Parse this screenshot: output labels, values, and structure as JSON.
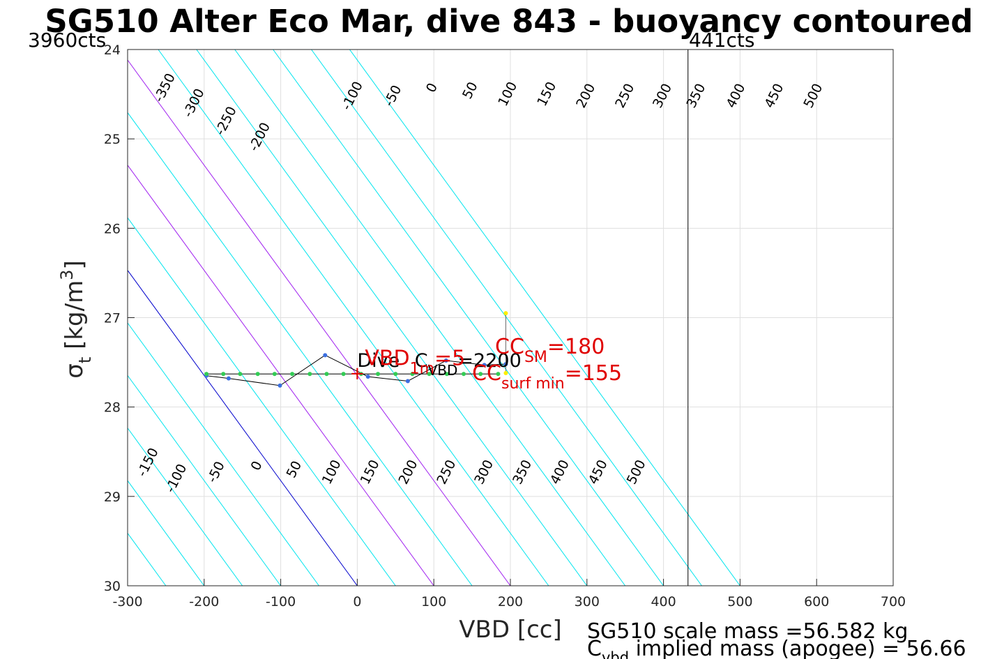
{
  "chart_data": {
    "type": "line",
    "title": "SG510 Alter Eco Mar, dive 843 - buoyancy contoured",
    "xlabel": "VBD [cc]",
    "ylabel": {
      "main": "σ",
      "sub": "t",
      "unit": " [kg/m",
      "sup": "3",
      "close": "]"
    },
    "xlim": [
      -300,
      700
    ],
    "ylim": [
      24,
      30
    ],
    "xticks": [
      -300,
      -200,
      -100,
      0,
      100,
      200,
      300,
      400,
      500,
      600,
      700
    ],
    "yticks": [
      24,
      25,
      26,
      27,
      28,
      29,
      30
    ],
    "grid": true,
    "corner_labels": {
      "left": "3960cts",
      "right": "441cts"
    },
    "vbd_max_line_x": 432,
    "contour_slope_cc_per_sigma": 85,
    "contour_color": "#00e5ee",
    "highlight_contours": [
      {
        "value": 0,
        "color": "#0000cc"
      },
      {
        "value": 100,
        "color": "#a020f0"
      },
      {
        "value": 200,
        "color": "#a020f0"
      }
    ],
    "contours": [
      -500,
      -450,
      -400,
      -350,
      -300,
      -250,
      -200,
      -150,
      -100,
      -50,
      0,
      50,
      100,
      150,
      200,
      250,
      300,
      350,
      400,
      450,
      500
    ],
    "top_contour_labels": [
      {
        "text": "-350",
        "x": -251,
        "y": 24.43
      },
      {
        "text": "-300",
        "x": -213,
        "y": 24.6
      },
      {
        "text": "-250",
        "x": -171,
        "y": 24.8
      },
      {
        "text": "-200",
        "x": -127,
        "y": 24.98
      },
      {
        "text": "-100",
        "x": -6,
        "y": 24.52
      },
      {
        "text": "-50",
        "x": 47,
        "y": 24.52
      },
      {
        "text": "0",
        "x": 98,
        "y": 24.43
      },
      {
        "text": "50",
        "x": 148,
        "y": 24.46
      },
      {
        "text": "100",
        "x": 197,
        "y": 24.5
      },
      {
        "text": "150",
        "x": 248,
        "y": 24.5
      },
      {
        "text": "200",
        "x": 299,
        "y": 24.52
      },
      {
        "text": "250",
        "x": 350,
        "y": 24.52
      },
      {
        "text": "300",
        "x": 399,
        "y": 24.52
      },
      {
        "text": "350",
        "x": 443,
        "y": 24.52
      },
      {
        "text": "400",
        "x": 495,
        "y": 24.52
      },
      {
        "text": "450",
        "x": 545,
        "y": 24.52
      },
      {
        "text": "500",
        "x": 596,
        "y": 24.52
      }
    ],
    "bottom_contour_labels": [
      {
        "text": "-150",
        "x": -273,
        "y": 28.62
      },
      {
        "text": "-100",
        "x": -236,
        "y": 28.8
      },
      {
        "text": "-50",
        "x": -184,
        "y": 28.73
      },
      {
        "text": "0",
        "x": -131,
        "y": 28.66
      },
      {
        "text": "50",
        "x": -82,
        "y": 28.7
      },
      {
        "text": "100",
        "x": -33,
        "y": 28.73
      },
      {
        "text": "150",
        "x": 17,
        "y": 28.73
      },
      {
        "text": "200",
        "x": 67,
        "y": 28.73
      },
      {
        "text": "250",
        "x": 117,
        "y": 28.73
      },
      {
        "text": "300",
        "x": 166,
        "y": 28.73
      },
      {
        "text": "350",
        "x": 216,
        "y": 28.73
      },
      {
        "text": "400",
        "x": 265,
        "y": 28.73
      },
      {
        "text": "450",
        "x": 315,
        "y": 28.73
      },
      {
        "text": "500",
        "x": 365,
        "y": 28.73
      }
    ],
    "series": [
      {
        "marker_color": "#3b6fe0",
        "points": [
          [
            -197,
            27.65
          ],
          [
            -168,
            27.68
          ],
          [
            -101,
            27.76
          ],
          [
            -42,
            27.42
          ],
          [
            14,
            27.66
          ],
          [
            66,
            27.71
          ],
          [
            116,
            27.48
          ],
          [
            166,
            27.53
          ],
          [
            194,
            27.52
          ]
        ]
      },
      {
        "marker_color": "#33cc55",
        "points": [
          [
            -197,
            27.63
          ],
          [
            -175,
            27.63
          ],
          [
            -153,
            27.63
          ],
          [
            -130,
            27.63
          ],
          [
            -108,
            27.63
          ],
          [
            -85,
            27.63
          ],
          [
            -62,
            27.63
          ],
          [
            -40,
            27.63
          ],
          [
            -18,
            27.63
          ],
          [
            5,
            27.63
          ],
          [
            27,
            27.63
          ],
          [
            50,
            27.63
          ],
          [
            72,
            27.63
          ],
          [
            94,
            27.63
          ],
          [
            117,
            27.63
          ],
          [
            139,
            27.63
          ],
          [
            161,
            27.63
          ],
          [
            184,
            27.63
          ]
        ]
      },
      {
        "marker_color": "#ffee00",
        "points": [
          [
            194,
            26.95
          ],
          [
            194,
            27.62
          ]
        ]
      }
    ],
    "annotations": {
      "vbd_marker": {
        "x": 0,
        "y": 27.63,
        "symbol": "+"
      },
      "dive_label": {
        "text": "Dive",
        "x": 0,
        "y": 27.55
      },
      "vbd_c": {
        "main": "C",
        "sub": "VBD",
        "value": "=2200",
        "x": 75,
        "y": 27.55
      },
      "vbd_1m": {
        "main": "VBD",
        "sub": "1m",
        "value": "=5",
        "x": 10,
        "y": 27.53
      },
      "cc_sm": {
        "main": "CC",
        "sub": "SM",
        "value": "=180",
        "x": 180,
        "y": 27.4
      },
      "cc_surf": {
        "main": "CC",
        "sub": "surf min",
        "value": "=155",
        "x": 150,
        "y": 27.7
      }
    },
    "footer": {
      "line1": "SG510 scale mass =56.582 kg",
      "line2_main": "C",
      "line2_sub": "vbd",
      "line2_rest": " implied mass (apogee) = 56.66"
    }
  }
}
